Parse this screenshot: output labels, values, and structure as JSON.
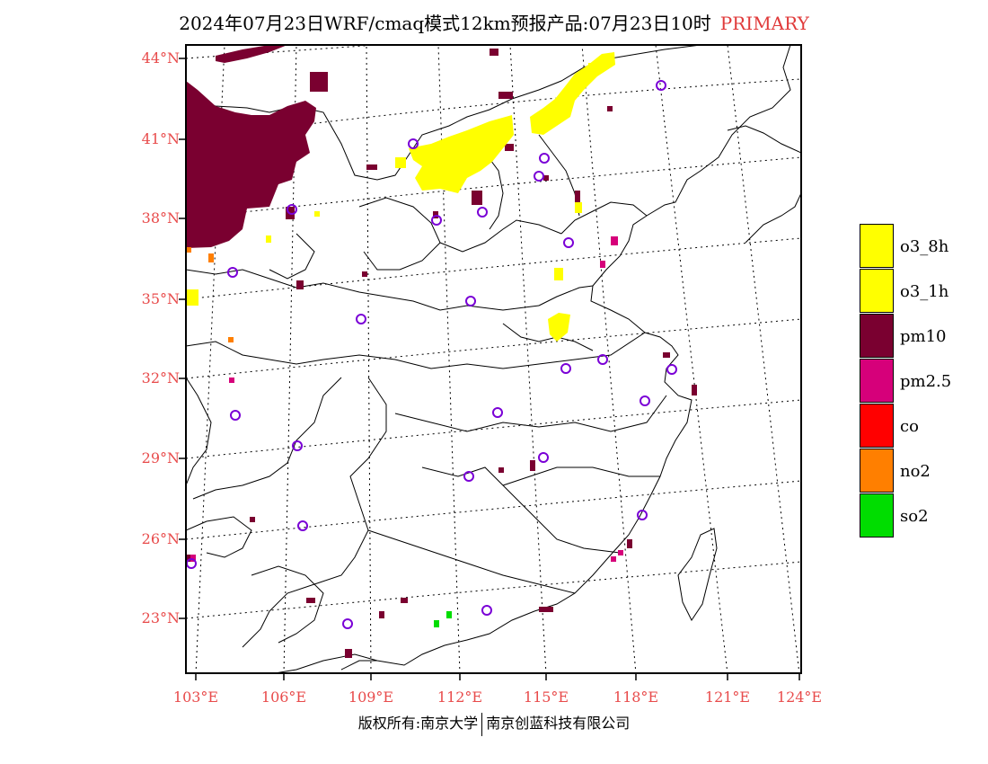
{
  "title": {
    "main": "2024年07月23日WRF/cmaq模式12km预报产品:07月23日10时",
    "tag": "PRIMARY"
  },
  "latitude_labels": [
    "44°N",
    "41°N",
    "38°N",
    "35°N",
    "32°N",
    "29°N",
    "26°N",
    "23°N"
  ],
  "longitude_labels": [
    "103°E",
    "106°E",
    "109°E",
    "112°E",
    "115°E",
    "118°E",
    "121°E",
    "124°E"
  ],
  "credit": {
    "left": "版权所有:南京大学",
    "right": "南京创蓝科技有限公司"
  },
  "legend": [
    {
      "label": "o3_8h",
      "color": "#ffff00"
    },
    {
      "label": "o3_1h",
      "color": "#ffff00"
    },
    {
      "label": "pm10",
      "color": "#7a0030"
    },
    {
      "label": "pm2.5",
      "color": "#d6007a"
    },
    {
      "label": "co",
      "color": "#ff0000"
    },
    {
      "label": "no2",
      "color": "#ff7f00"
    },
    {
      "label": "so2",
      "color": "#00dd00"
    }
  ],
  "colors": {
    "o3": "#ffff00",
    "pm10": "#7a0030",
    "pm25": "#d6007a",
    "no2": "#ff7f00",
    "so2": "#00dd00",
    "station": "#7a00d6",
    "axis_label": "#e84b4b"
  }
}
